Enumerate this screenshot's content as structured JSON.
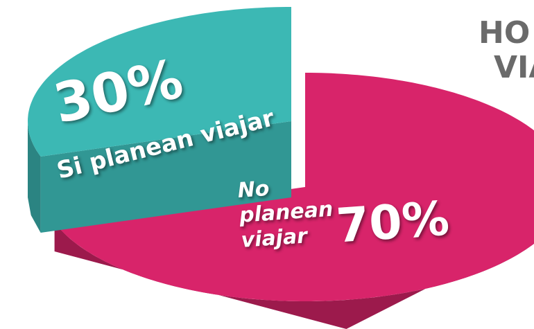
{
  "chart_data": {
    "type": "pie",
    "title_lines": [
      "HO",
      "VIA"
    ],
    "categories": [
      "Si planean viajar",
      "No planean viajar"
    ],
    "values": [
      30,
      70
    ],
    "value_labels": [
      "30%",
      "70%"
    ],
    "colors": [
      "#3cb8b4",
      "#d8246a"
    ]
  }
}
